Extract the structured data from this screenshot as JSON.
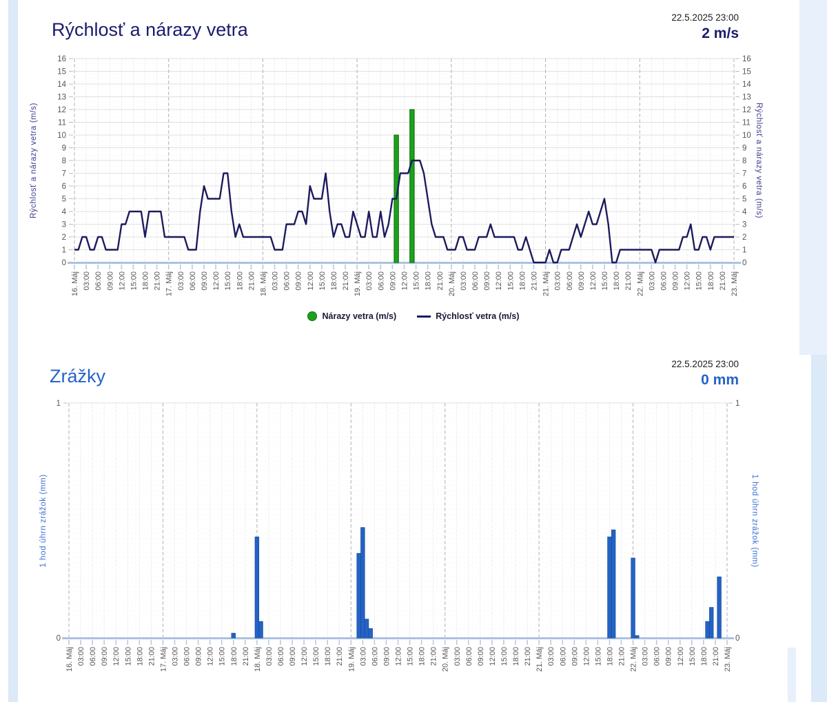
{
  "page": {
    "background": "#ffffff",
    "margin_strip_color": "#dbe9f8",
    "margin_strip_color_light": "#e7f0fb"
  },
  "colors": {
    "wind_line": "#1c1a5e",
    "gust_bar_fill": "#1da11d",
    "gust_bar_border": "#0a660a",
    "precip_bar_fill": "#2463c6",
    "precip_bar_border": "#1b4f9e",
    "title_navy": "#1b1a6e",
    "title_blue": "#2563c8",
    "tick_text": "#555555",
    "day_gridline": "#b0b0b0",
    "hour3_gridline": "#d6d6d6",
    "axis_baseline": "#a9c2e2"
  },
  "chart_data": [
    {
      "type": "line+bar",
      "title": "Rýchlosť a nárazy vetra",
      "timestamp": "22.5.2025 23:00",
      "current_value": "2 m/s",
      "ylabel": "Rýchlosť a nárazy vetra (m/s)",
      "ylabel_right": "Rýchlosť a nárazy vetra (m/s)",
      "ylim": [
        0,
        16
      ],
      "y_tick_step": 1,
      "x_range_hours": 168,
      "x_tick_step_hours": 3,
      "grid": true,
      "legend_position": "bottom-center",
      "x_tick_labels": [
        "16. Máj",
        "03:00",
        "06:00",
        "09:00",
        "12:00",
        "15:00",
        "18:00",
        "21:00",
        "17. Máj",
        "03:00",
        "06:00",
        "09:00",
        "12:00",
        "15:00",
        "18:00",
        "21:00",
        "18. Máj",
        "03:00",
        "06:00",
        "09:00",
        "12:00",
        "15:00",
        "18:00",
        "21:00",
        "19. Máj",
        "03:00",
        "06:00",
        "09:00",
        "12:00",
        "15:00",
        "18:00",
        "21:00",
        "20. Máj",
        "03:00",
        "06:00",
        "09:00",
        "12:00",
        "15:00",
        "18:00",
        "21:00",
        "21. Máj",
        "03:00",
        "06:00",
        "09:00",
        "12:00",
        "15:00",
        "18:00",
        "21:00",
        "22. Máj",
        "03:00",
        "06:00",
        "09:00",
        "12:00",
        "15:00",
        "18:00",
        "21:00",
        "23. Máj"
      ],
      "series": [
        {
          "name": "Rýchlosť vetra (m/s)",
          "type": "line",
          "color": "#1c1a5e",
          "unit": "m/s",
          "start": "16. Máj 00:00",
          "step_hours": 1,
          "values": [
            1,
            1,
            2,
            2,
            1,
            1,
            2,
            2,
            1,
            1,
            1,
            1,
            3,
            3,
            4,
            4,
            4,
            4,
            2,
            4,
            4,
            4,
            4,
            2,
            2,
            2,
            2,
            2,
            2,
            1,
            1,
            1,
            4,
            6,
            5,
            5,
            5,
            5,
            7,
            7,
            4,
            2,
            3,
            2,
            2,
            2,
            2,
            2,
            2,
            2,
            2,
            1,
            1,
            1,
            3,
            3,
            3,
            4,
            4,
            3,
            6,
            5,
            5,
            5,
            7,
            4,
            2,
            3,
            3,
            2,
            2,
            4,
            3,
            2,
            2,
            4,
            2,
            2,
            4,
            2,
            3,
            5,
            5,
            7,
            7,
            7,
            8,
            8,
            8,
            7,
            5,
            3,
            2,
            2,
            2,
            1,
            1,
            1,
            2,
            2,
            1,
            1,
            1,
            2,
            2,
            2,
            3,
            2,
            2,
            2,
            2,
            2,
            2,
            1,
            1,
            2,
            1,
            0,
            0,
            0,
            0,
            1,
            0,
            0,
            1,
            1,
            1,
            2,
            3,
            2,
            3,
            4,
            3,
            3,
            4,
            5,
            3,
            0,
            0,
            1,
            1,
            1,
            1,
            1,
            1,
            1,
            1,
            1,
            0,
            1,
            1,
            1,
            1,
            1,
            1,
            2,
            2,
            3,
            1,
            1,
            2,
            2,
            1,
            2,
            2,
            2,
            2,
            2,
            2
          ]
        },
        {
          "name": "Nárazy vetra (m/s)",
          "type": "bar",
          "color": "#1da11d",
          "border_color": "#0a660a",
          "unit": "m/s",
          "points": [
            {
              "hour_offset": 82,
              "time": "19. Máj 10:00",
              "value": 10
            },
            {
              "hour_offset": 86,
              "time": "19. Máj 14:00",
              "value": 12
            }
          ]
        }
      ]
    },
    {
      "type": "bar",
      "title": "Zrážky",
      "timestamp": "22.5.2025 23:00",
      "current_value": "0 mm",
      "ylabel": "1 hod úhrn zrážok (mm)",
      "ylabel_right": "1 hod úhrn zrážok (mm)",
      "ylim": [
        0,
        1
      ],
      "y_ticks": [
        0,
        1
      ],
      "x_range_hours": 168,
      "x_tick_step_hours": 3,
      "grid": true,
      "bar_color": "#2463c6",
      "bar_border_color": "#1b4f9e",
      "unit": "mm",
      "x_tick_labels": [
        "16. Máj",
        "03:00",
        "06:00",
        "09:00",
        "12:00",
        "15:00",
        "18:00",
        "21:00",
        "17. Máj",
        "03:00",
        "06:00",
        "09:00",
        "12:00",
        "15:00",
        "18:00",
        "21:00",
        "18. Máj",
        "03:00",
        "06:00",
        "09:00",
        "12:00",
        "15:00",
        "18:00",
        "21:00",
        "19. Máj",
        "03:00",
        "06:00",
        "09:00",
        "12:00",
        "15:00",
        "18:00",
        "21:00",
        "20. Máj",
        "03:00",
        "06:00",
        "09:00",
        "12:00",
        "15:00",
        "18:00",
        "21:00",
        "21. Máj",
        "03:00",
        "06:00",
        "09:00",
        "12:00",
        "15:00",
        "18:00",
        "21:00",
        "22. Máj",
        "03:00",
        "06:00",
        "09:00",
        "12:00",
        "15:00",
        "18:00",
        "21:00",
        "23. Máj"
      ],
      "bars": [
        {
          "hour_offset": 42,
          "time": "17. Máj 18:00",
          "value": 0.02
        },
        {
          "hour_offset": 48,
          "time": "18. Máj 00:00",
          "value": 0.43
        },
        {
          "hour_offset": 49,
          "time": "18. Máj 01:00",
          "value": 0.07
        },
        {
          "hour_offset": 74,
          "time": "19. Máj 02:00",
          "value": 0.36
        },
        {
          "hour_offset": 75,
          "time": "19. Máj 03:00",
          "value": 0.47
        },
        {
          "hour_offset": 76,
          "time": "19. Máj 04:00",
          "value": 0.08
        },
        {
          "hour_offset": 77,
          "time": "19. Máj 05:00",
          "value": 0.04
        },
        {
          "hour_offset": 138,
          "time": "21. Máj 18:00",
          "value": 0.43
        },
        {
          "hour_offset": 139,
          "time": "21. Máj 19:00",
          "value": 0.46
        },
        {
          "hour_offset": 144,
          "time": "22. Máj 00:00",
          "value": 0.34
        },
        {
          "hour_offset": 145,
          "time": "22. Máj 01:00",
          "value": 0.01
        },
        {
          "hour_offset": 163,
          "time": "22. Máj 19:00",
          "value": 0.07
        },
        {
          "hour_offset": 164,
          "time": "22. Máj 20:00",
          "value": 0.13
        },
        {
          "hour_offset": 166,
          "time": "22. Máj 22:00",
          "value": 0.26
        }
      ]
    }
  ]
}
